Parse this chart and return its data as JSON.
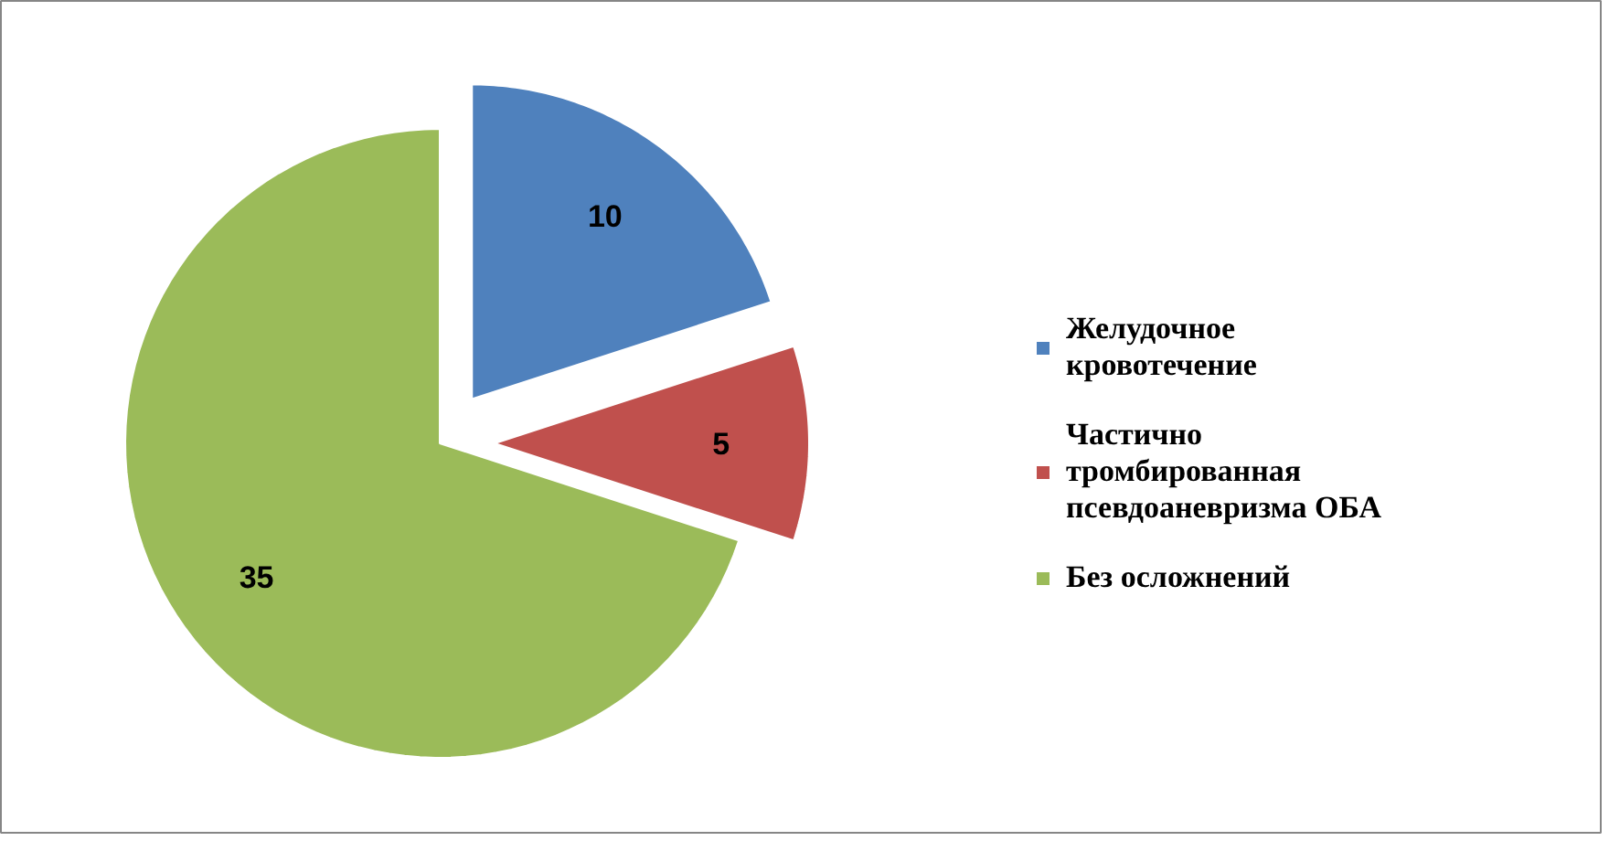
{
  "chart_data": {
    "type": "pie",
    "categories": [
      "Желудочное кровотечение",
      "Частично тромбированная псевдоаневризма ОБА",
      "Без осложнений"
    ],
    "values": [
      10,
      5,
      35
    ],
    "colors": [
      "#4f81bd",
      "#c0504d",
      "#9bbb59"
    ],
    "data_labels": true,
    "legend": "right"
  }
}
